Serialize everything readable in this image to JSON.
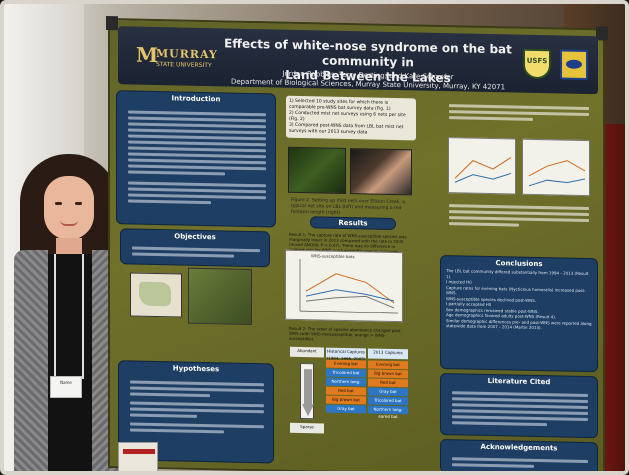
{
  "poster": {
    "title_line1": "Effects of white-nose syndrome on the bat community in",
    "title_line2": "Land Between the Lakes",
    "authors": "Jordan Robbins, Terry Derting, and Kate Schaefer",
    "department": "Department of Biological Sciences, Murray State University, Murray, KY 42071",
    "logo_word": "MURRAY",
    "logo_sub": "STATE UNIVERSITY",
    "agency_badge": "USFS",
    "sections": {
      "introduction": "Introduction",
      "objectives": "Objectives",
      "hypotheses": "Hypotheses",
      "methods_list": "1) Selected 10 study sites for which there is comparable pre-WNS bat survey data (Fig. 1)\n2) Conducted mist net surveys using 6 nets per site (Fig. 2)\n3) Compared post-WNS data from LBL bat mist net surveys with our 2013 survey data",
      "results": "Results",
      "result1": "Result 1: The capture rate of WNS-susceptible species was marginally lower in 2013 compared with the rate in 2005 (mixed ANOVA; P = 0.07). There was no difference in capture rate for WNS-nonsusceptible species between 2000 and 2013.",
      "result2": "Result 2: The order of species abundance changed post WNS (with WNS-nonsusceptible, orange > WNS-susceptible).",
      "conclusions": "Conclusions",
      "conclusion_text": "The LBL bat community differed substantially from 1994 - 2013 (Result 1).\nI rejected H0\nCapture rates for evening bats (Nycticeius humeralis) increased post-WNS.\nWNS-susceptible species declined post-WNS.\nI partially accepted H0\nSex demographics remained stable post-WNS.\nAge demographics favored adults post-WNS (Result 4).\nSimilar demographic differences pre- and post-WNS were reported along statewide data from 2007 - 2014 (Martin 2013).",
      "literature": "Literature Cited",
      "acknowledgements": "Acknowledgements"
    },
    "table": {
      "col1": "Abundant",
      "col2": "Historical Captures (1984, 1995, 2005)",
      "col3": "2013 Captures",
      "footer": "Sparse",
      "rows": [
        [
          "Evening bat",
          "Evening bat"
        ],
        [
          "Tricolored bat",
          "Big brown bat"
        ],
        [
          "Northern long-eared bat",
          "Red bat"
        ],
        [
          "Red bat",
          "Gray bat"
        ],
        [
          "Big brown bat",
          "Tricolored bat"
        ],
        [
          "Gray bat",
          "Northern long-eared bat"
        ]
      ]
    },
    "chart_caption": "WNS-susceptible bats",
    "figure_caption": "Figure 2. Setting up mist nets over Ellison Creek, a typical net site on LBL (left) and measuring a red forearm length (right)."
  },
  "scene": {
    "badge_text": "Name"
  },
  "colors": {
    "poster_bg": "#6a6a24",
    "box_bg": "#1f3e63",
    "banner_bg": "#283041",
    "accent_gold": "#e3c66a",
    "table_orange": "#e07a1c",
    "table_blue": "#2c76c4"
  }
}
